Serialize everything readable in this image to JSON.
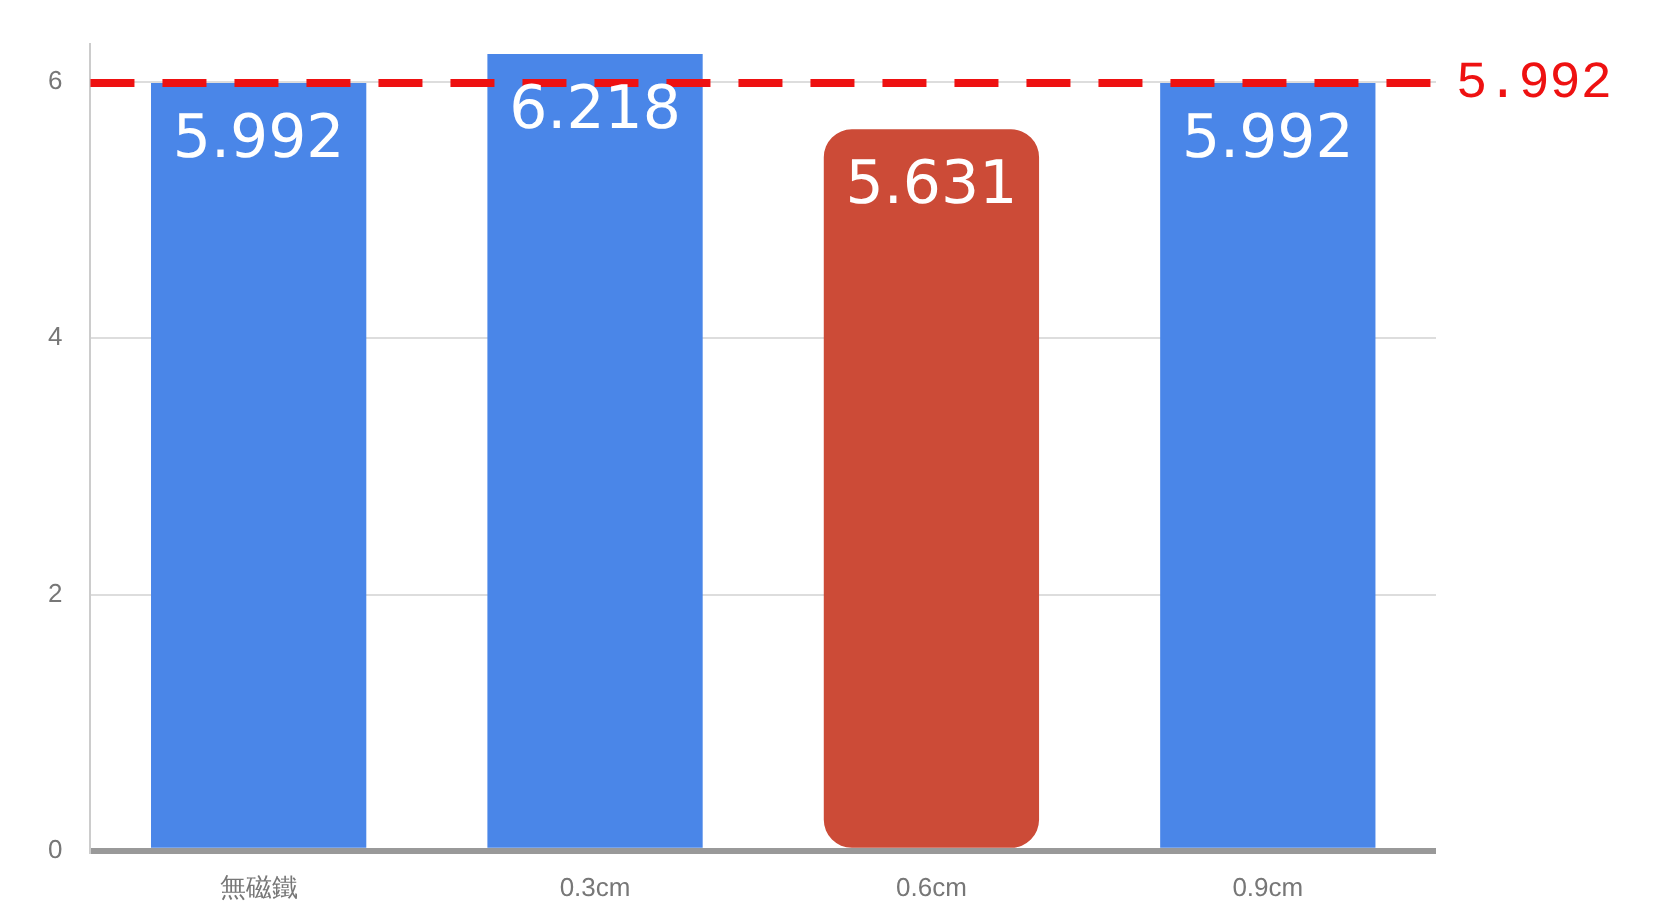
{
  "chart_data": {
    "type": "bar",
    "categories": [
      "無磁鐵",
      "0.3cm",
      "0.6cm",
      "0.9cm"
    ],
    "values": [
      5.992,
      6.218,
      5.631,
      5.992
    ],
    "colors": [
      "#4a86e8",
      "#4a86e8",
      "#cc4b37",
      "#4a86e8"
    ],
    "ylim": [
      0,
      6.3
    ],
    "yticks": [
      0,
      2,
      4,
      6
    ],
    "grid": "y",
    "legend": false,
    "data_labels": true,
    "ref_lines": [
      {
        "axis": "y",
        "value": 5.992,
        "label": "5.992",
        "color": "#ee1111",
        "line_style": "dashed"
      }
    ]
  }
}
